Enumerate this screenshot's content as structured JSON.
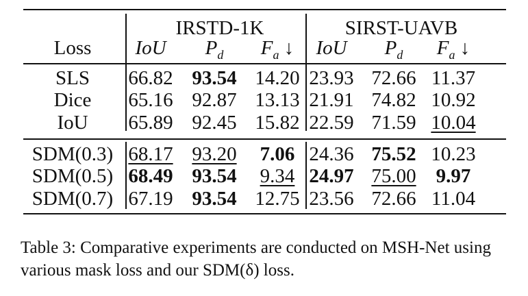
{
  "table": {
    "groups": [
      "IRSTD-1K",
      "SIRST-UAVB"
    ],
    "loss_header": "Loss",
    "metrics": [
      "IoU",
      "Pd",
      "Fa ↓",
      "IoU",
      "Pd",
      "Fa ↓"
    ],
    "rows": [
      {
        "loss": "SLS",
        "values": [
          "66.82",
          "93.54",
          "14.20",
          "23.93",
          "72.66",
          "11.37"
        ],
        "bold": [
          false,
          true,
          false,
          false,
          false,
          false
        ],
        "underline": [
          false,
          false,
          false,
          false,
          false,
          false
        ]
      },
      {
        "loss": "Dice",
        "values": [
          "65.16",
          "92.87",
          "13.13",
          "21.91",
          "74.82",
          "10.92"
        ],
        "bold": [
          false,
          false,
          false,
          false,
          false,
          false
        ],
        "underline": [
          false,
          false,
          false,
          false,
          false,
          false
        ]
      },
      {
        "loss": "IoU",
        "values": [
          "65.89",
          "92.45",
          "15.82",
          "22.59",
          "71.59",
          "10.04"
        ],
        "bold": [
          false,
          false,
          false,
          false,
          false,
          false
        ],
        "underline": [
          false,
          false,
          false,
          false,
          false,
          true
        ]
      },
      {
        "loss": "SDM(0.3)",
        "values": [
          "68.17",
          "93.20",
          "7.06",
          "24.36",
          "75.52",
          "10.23"
        ],
        "bold": [
          false,
          false,
          true,
          false,
          true,
          false
        ],
        "underline": [
          true,
          true,
          false,
          false,
          false,
          false
        ]
      },
      {
        "loss": "SDM(0.5)",
        "values": [
          "68.49",
          "93.54",
          "9.34",
          "24.97",
          "75.00",
          "9.97"
        ],
        "bold": [
          true,
          true,
          false,
          true,
          false,
          true
        ],
        "underline": [
          false,
          false,
          true,
          false,
          true,
          false
        ]
      },
      {
        "loss": "SDM(0.7)",
        "values": [
          "67.19",
          "93.54",
          "12.75",
          "23.56",
          "72.66",
          "11.04"
        ],
        "bold": [
          false,
          true,
          false,
          false,
          false,
          false
        ],
        "underline": [
          false,
          false,
          false,
          false,
          false,
          false
        ]
      }
    ]
  },
  "caption": "Table 3: Comparative experiments are conducted on MSH-Net using various mask loss and our SDM(δ) loss."
}
